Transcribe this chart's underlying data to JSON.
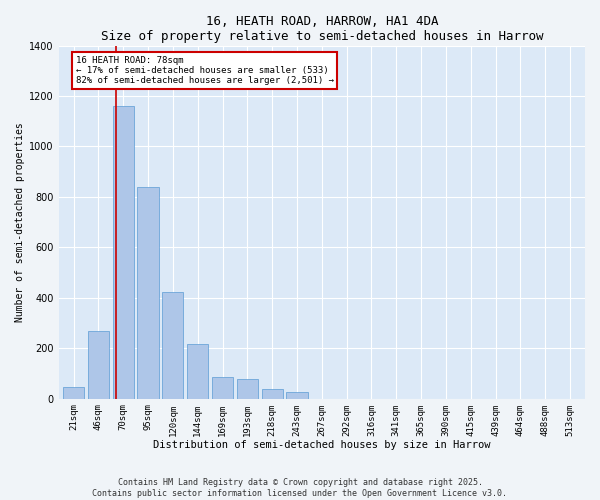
{
  "title": "16, HEATH ROAD, HARROW, HA1 4DA",
  "subtitle": "Size of property relative to semi-detached houses in Harrow",
  "xlabel": "Distribution of semi-detached houses by size in Harrow",
  "ylabel": "Number of semi-detached properties",
  "categories": [
    "21sqm",
    "46sqm",
    "70sqm",
    "95sqm",
    "120sqm",
    "144sqm",
    "169sqm",
    "193sqm",
    "218sqm",
    "243sqm",
    "267sqm",
    "292sqm",
    "316sqm",
    "341sqm",
    "365sqm",
    "390sqm",
    "415sqm",
    "439sqm",
    "464sqm",
    "488sqm",
    "513sqm"
  ],
  "values": [
    45,
    270,
    1160,
    840,
    425,
    215,
    85,
    80,
    40,
    25,
    0,
    0,
    0,
    0,
    0,
    0,
    0,
    0,
    0,
    0,
    0
  ],
  "bar_color": "#aec6e8",
  "bar_edge_color": "#5b9bd5",
  "vline_color": "#cc0000",
  "annotation_text": "16 HEATH ROAD: 78sqm\n← 17% of semi-detached houses are smaller (533)\n82% of semi-detached houses are larger (2,501) →",
  "annotation_box_color": "#ffffff",
  "annotation_box_edge": "#cc0000",
  "ylim": [
    0,
    1400
  ],
  "background_color": "#dce9f7",
  "grid_color": "#ffffff",
  "fig_background": "#f0f4f8",
  "footer_line1": "Contains HM Land Registry data © Crown copyright and database right 2025.",
  "footer_line2": "Contains public sector information licensed under the Open Government Licence v3.0."
}
